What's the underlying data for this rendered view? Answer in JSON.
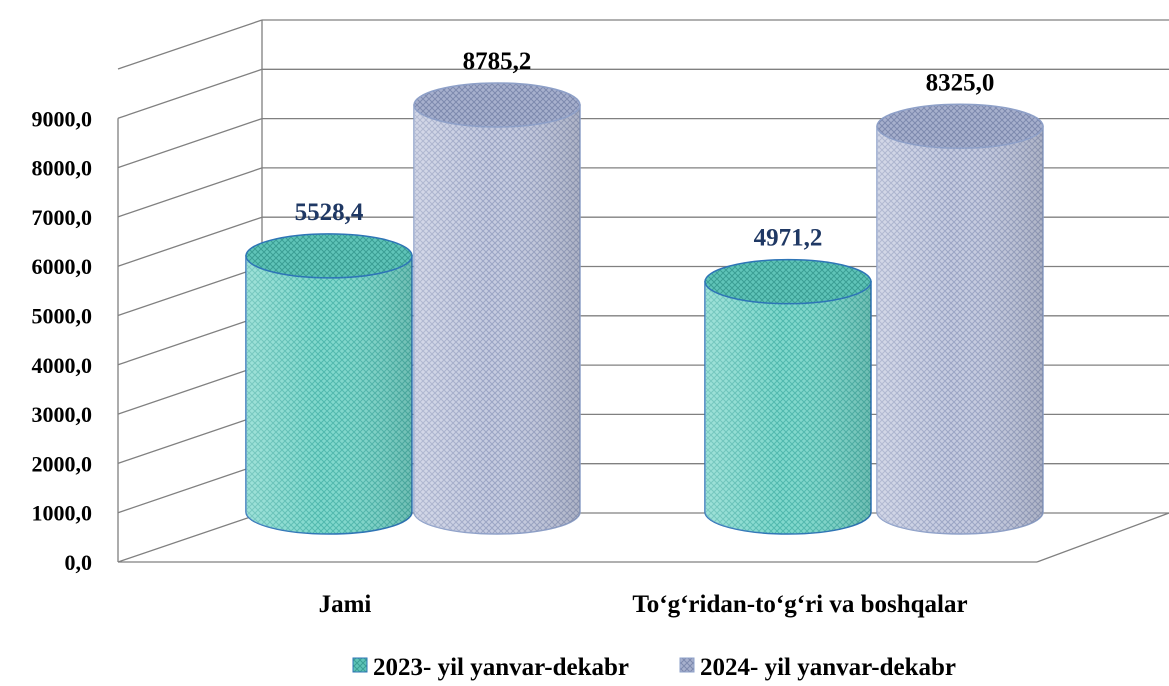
{
  "chart_data": {
    "type": "bar",
    "style": "3d-cylinder",
    "categories": [
      "Jami",
      "To‘g‘ridan-to‘g‘ri va boshqalar"
    ],
    "series": [
      {
        "name": "2023- yil yanvar-dekabr",
        "values": [
          5528.4,
          4971.2
        ],
        "labels": [
          "5528,4",
          "4971,2"
        ],
        "color": "#7fd8cc",
        "edge_color": "#2e75b6",
        "label_color": "#1f3864"
      },
      {
        "name": "2024- yil yanvar-dekabr",
        "values": [
          8785.2,
          8325.0
        ],
        "labels": [
          "8785,2",
          "8325,0"
        ],
        "color": "#b3bcd9",
        "edge_color": "#8ea0c8",
        "label_color": "#000000"
      }
    ],
    "y_ticks": [
      "0,0",
      "1000,0",
      "2000,0",
      "3000,0",
      "4000,0",
      "5000,0",
      "6000,0",
      "7000,0",
      "8000,0",
      "9000,0"
    ],
    "ylim": [
      0,
      9000
    ],
    "grid": true,
    "legend_position": "bottom",
    "gridline_color": "#808080"
  }
}
